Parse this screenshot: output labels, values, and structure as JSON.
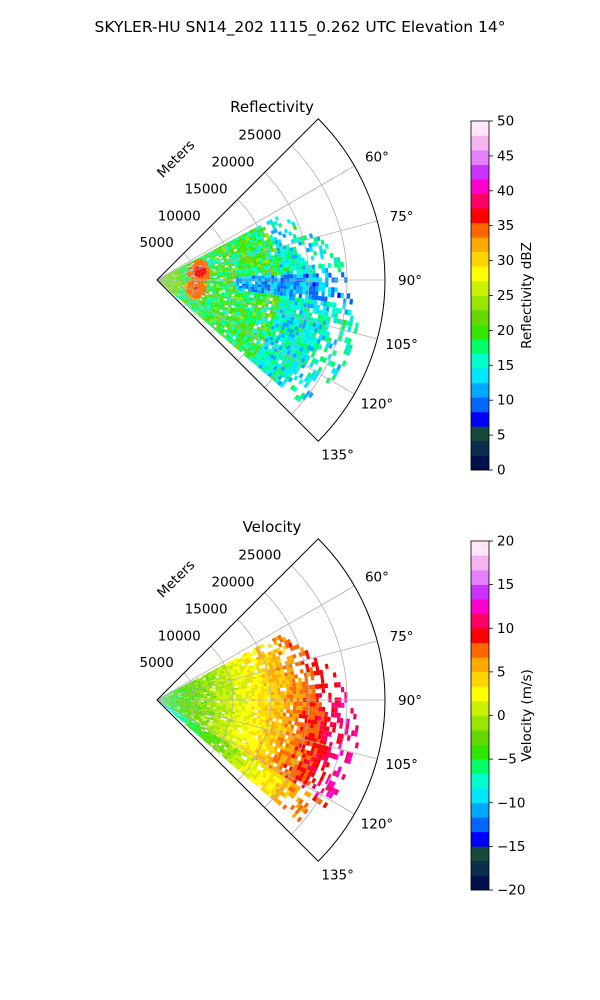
{
  "figure": {
    "suptitle": "SKYLER-HU  SN14_202  1115_0.262 UTC Elevation 14°"
  },
  "chart_data": [
    {
      "type": "heatmap",
      "subtype": "polar-sector radar PPI",
      "title": "Reflectivity",
      "radial_label": "Meters",
      "radial_ticks": [
        5000,
        10000,
        15000,
        20000,
        25000
      ],
      "radial_tick_labels": [
        "5000",
        "10000",
        "15000",
        "20000",
        "25000"
      ],
      "rlim": [
        0,
        30000
      ],
      "azimuth_range_deg": [
        45,
        135
      ],
      "theta_gridlines_deg": [
        60,
        75,
        90,
        105,
        120,
        135
      ],
      "theta_tick_labels": [
        "60°",
        "75°",
        "90°",
        "105°",
        "120°",
        "135°"
      ],
      "grid": true,
      "data_extent": {
        "azimuth_deg": [
          62,
          130
        ],
        "range_m_max": [
          18000,
          27000
        ]
      },
      "colorbar": {
        "label": "Reflectivity dBZ",
        "vmin": 0,
        "vmax": 50,
        "ticks": [
          0,
          5,
          10,
          15,
          20,
          25,
          30,
          35,
          40,
          45,
          50
        ],
        "tick_labels": [
          "0",
          "5",
          "10",
          "15",
          "20",
          "25",
          "30",
          "35",
          "40",
          "45",
          "50"
        ],
        "colors": [
          "#00104a",
          "#0b2e4f",
          "#174a3f",
          "#0000ff",
          "#0066ff",
          "#00aaff",
          "#00e6ff",
          "#00ffcc",
          "#00ff66",
          "#33e600",
          "#66d900",
          "#99e600",
          "#ccf000",
          "#ffff00",
          "#ffd500",
          "#ffaa00",
          "#ff6600",
          "#ff0000",
          "#ff0066",
          "#ff00cc",
          "#cc33ff",
          "#e680ff",
          "#f5b3f0",
          "#ffe6fa"
        ]
      },
      "hotspots": [
        {
          "azimuth_deg": 78,
          "range_m": 5500,
          "value_dbz": 37
        },
        {
          "azimuth_deg": 102,
          "range_m": 5000,
          "value_dbz": 36
        }
      ]
    },
    {
      "type": "heatmap",
      "subtype": "polar-sector radar PPI",
      "title": "Velocity",
      "radial_label": "Meters",
      "radial_ticks": [
        5000,
        10000,
        15000,
        20000,
        25000
      ],
      "radial_tick_labels": [
        "5000",
        "10000",
        "15000",
        "20000",
        "25000"
      ],
      "rlim": [
        0,
        30000
      ],
      "azimuth_range_deg": [
        45,
        135
      ],
      "theta_gridlines_deg": [
        60,
        75,
        90,
        105,
        120,
        135
      ],
      "theta_tick_labels": [
        "60°",
        "75°",
        "90°",
        "105°",
        "120°",
        "135°"
      ],
      "grid": true,
      "data_extent": {
        "azimuth_deg": [
          62,
          130
        ],
        "range_m_max": [
          18000,
          27000
        ]
      },
      "colorbar": {
        "label": "Velocity (m/s)",
        "vmin": -20,
        "vmax": 20,
        "ticks": [
          -20,
          -15,
          -10,
          -5,
          0,
          5,
          10,
          15,
          20
        ],
        "tick_labels": [
          "−20",
          "−15",
          "−10",
          "−5",
          "0",
          "5",
          "10",
          "15",
          "20"
        ],
        "colors": [
          "#00104a",
          "#0b2e4f",
          "#174a3f",
          "#0000ff",
          "#0066ff",
          "#00aaff",
          "#00e6ff",
          "#00ffcc",
          "#00ff66",
          "#33e600",
          "#66d900",
          "#99e600",
          "#ccf000",
          "#ffff00",
          "#ffd500",
          "#ffaa00",
          "#ff6600",
          "#ff0000",
          "#ff0066",
          "#ff00cc",
          "#cc33ff",
          "#e680ff",
          "#f5b3f0",
          "#ffe6fa"
        ]
      },
      "trend": "near-zero (green/yellow) close to radar, increasing to about +10 m/s (red) at far range"
    }
  ]
}
